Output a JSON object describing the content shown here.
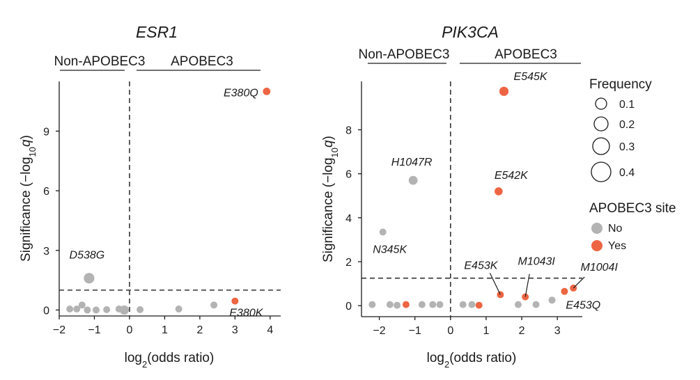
{
  "chart_data": [
    {
      "type": "scatter",
      "title": "ESR1",
      "xlabel": "log2(odds ratio)",
      "ylabel": "Significance (−log10q)",
      "xlim": [
        -2,
        4.3
      ],
      "ylim": [
        -0.3,
        11.5
      ],
      "xticks": [
        -2,
        -1,
        0,
        1,
        2,
        3,
        4
      ],
      "yticks": [
        0,
        3,
        6,
        9
      ],
      "vline": 0,
      "hline": 1.0,
      "groups": [
        {
          "label": "Non-APOBEC3",
          "from": -1.4,
          "to": -0.25
        },
        {
          "label": "APOBEC3",
          "from": 0.2,
          "to": 3.65
        }
      ],
      "points": [
        {
          "x": -1.15,
          "y": 1.6,
          "freq": 0.12,
          "apobec": false,
          "label": "D538G"
        },
        {
          "x": -1.35,
          "y": 0.25,
          "freq": 0.04,
          "apobec": false,
          "label": ""
        },
        {
          "x": -1.7,
          "y": 0.05,
          "freq": 0.025,
          "apobec": false,
          "label": ""
        },
        {
          "x": -1.5,
          "y": 0.05,
          "freq": 0.025,
          "apobec": false,
          "label": ""
        },
        {
          "x": -1.2,
          "y": 0.0,
          "freq": 0.025,
          "apobec": false,
          "label": ""
        },
        {
          "x": -0.95,
          "y": 0.0,
          "freq": 0.02,
          "apobec": false,
          "label": ""
        },
        {
          "x": -0.65,
          "y": 0.02,
          "freq": 0.03,
          "apobec": false,
          "label": ""
        },
        {
          "x": -0.3,
          "y": 0.05,
          "freq": 0.035,
          "apobec": false,
          "label": ""
        },
        {
          "x": -0.15,
          "y": 0.0,
          "freq": 0.09,
          "apobec": false,
          "label": ""
        },
        {
          "x": 0.3,
          "y": 0.02,
          "freq": 0.012,
          "apobec": false,
          "label": ""
        },
        {
          "x": 1.4,
          "y": 0.05,
          "freq": 0.018,
          "apobec": false,
          "label": ""
        },
        {
          "x": 2.4,
          "y": 0.25,
          "freq": 0.01,
          "apobec": false,
          "label": ""
        },
        {
          "x": 3.9,
          "y": 11.0,
          "freq": 0.06,
          "apobec": true,
          "label": "E380Q"
        },
        {
          "x": 3.0,
          "y": 0.45,
          "freq": 0.015,
          "apobec": true,
          "label": "E380K"
        }
      ]
    },
    {
      "type": "scatter",
      "title": "PIK3CA",
      "xlabel": "log2(odds ratio)",
      "ylabel": "Significance (−log10q)",
      "xlim": [
        -2.5,
        3.7
      ],
      "ylim": [
        -0.5,
        10.2
      ],
      "xticks": [
        -2,
        -1,
        0,
        1,
        2,
        3
      ],
      "yticks": [
        0,
        2,
        4,
        6,
        8
      ],
      "vline": 0,
      "hline": 1.25,
      "groups": [
        {
          "label": "Non-APOBEC3",
          "from": -1.85,
          "to": -0.1
        },
        {
          "label": "APOBEC3",
          "from": 0.15,
          "to": 2.8
        }
      ],
      "points": [
        {
          "x": 1.5,
          "y": 9.75,
          "freq": 0.09,
          "apobec": true,
          "label": "E545K"
        },
        {
          "x": -1.05,
          "y": 5.7,
          "freq": 0.085,
          "apobec": false,
          "label": "H1047R"
        },
        {
          "x": 1.35,
          "y": 5.2,
          "freq": 0.07,
          "apobec": true,
          "label": "E542K"
        },
        {
          "x": -1.9,
          "y": 3.35,
          "freq": 0.04,
          "apobec": false,
          "label": "N345K"
        },
        {
          "x": 1.4,
          "y": 0.5,
          "freq": 0.025,
          "apobec": true,
          "label": "E453K"
        },
        {
          "x": 2.1,
          "y": 0.4,
          "freq": 0.025,
          "apobec": true,
          "label": "M1043I"
        },
        {
          "x": 3.45,
          "y": 0.8,
          "freq": 0.02,
          "apobec": true,
          "label": "M1004I"
        },
        {
          "x": 3.2,
          "y": 0.65,
          "freq": 0.02,
          "apobec": true,
          "label": "E453Q"
        },
        {
          "x": 0.8,
          "y": 0.02,
          "freq": 0.015,
          "apobec": true,
          "label": ""
        },
        {
          "x": -1.25,
          "y": 0.05,
          "freq": 0.02,
          "apobec": true,
          "label": ""
        },
        {
          "x": -2.2,
          "y": 0.05,
          "freq": 0.015,
          "apobec": false,
          "label": ""
        },
        {
          "x": -1.7,
          "y": 0.05,
          "freq": 0.015,
          "apobec": false,
          "label": ""
        },
        {
          "x": -1.5,
          "y": 0.02,
          "freq": 0.012,
          "apobec": false,
          "label": ""
        },
        {
          "x": -0.8,
          "y": 0.05,
          "freq": 0.03,
          "apobec": false,
          "label": ""
        },
        {
          "x": -0.5,
          "y": 0.05,
          "freq": 0.02,
          "apobec": false,
          "label": ""
        },
        {
          "x": -0.3,
          "y": 0.05,
          "freq": 0.02,
          "apobec": false,
          "label": ""
        },
        {
          "x": 0.35,
          "y": 0.05,
          "freq": 0.015,
          "apobec": false,
          "label": ""
        },
        {
          "x": 0.6,
          "y": 0.05,
          "freq": 0.02,
          "apobec": false,
          "label": ""
        },
        {
          "x": 1.9,
          "y": 0.05,
          "freq": 0.015,
          "apobec": false,
          "label": ""
        },
        {
          "x": 2.4,
          "y": 0.05,
          "freq": 0.012,
          "apobec": false,
          "label": ""
        },
        {
          "x": 2.85,
          "y": 0.25,
          "freq": 0.012,
          "apobec": false,
          "label": ""
        }
      ]
    }
  ],
  "legend": {
    "size_title": "Frequency",
    "sizes": [
      0.1,
      0.2,
      0.3,
      0.4
    ],
    "size_labels": [
      "0.1",
      "0.2",
      "0.3",
      "0.4"
    ],
    "color_title": "APOBEC3 site",
    "colors": [
      {
        "label": "No",
        "color": "#b3b3b3"
      },
      {
        "label": "Yes",
        "color": "#ee6543"
      }
    ]
  }
}
